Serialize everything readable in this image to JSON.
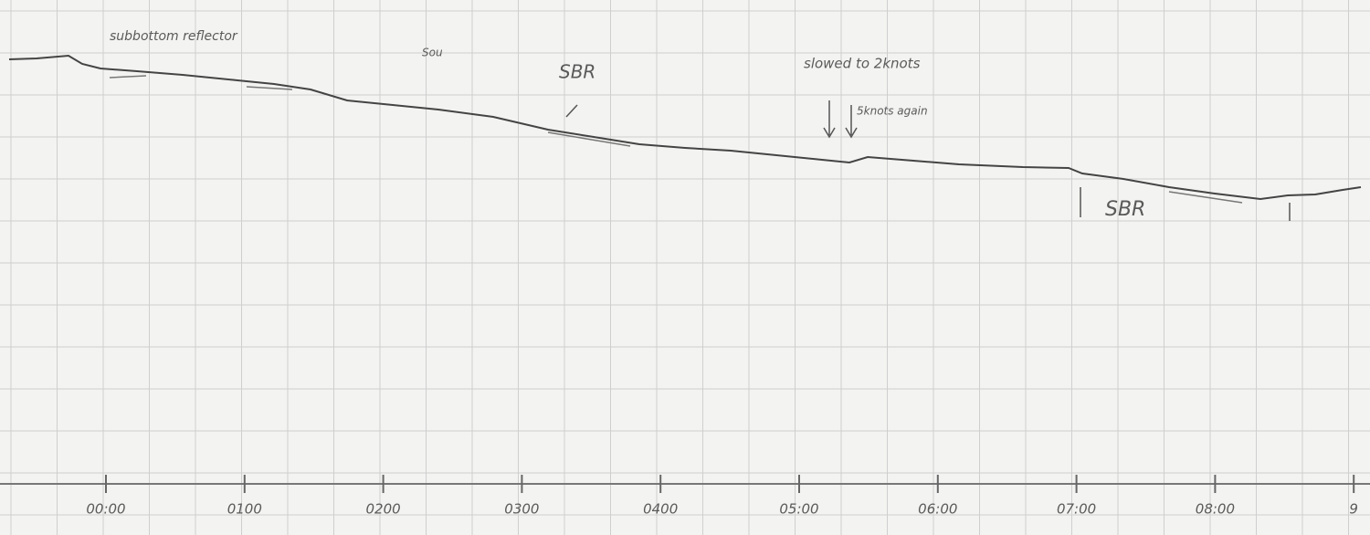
{
  "time_labels": [
    "00:00",
    "0100",
    "0200",
    "0300",
    "0400",
    "05:00",
    "06:00",
    "07:00",
    "08:00",
    "9"
  ],
  "annotations": {
    "reflector": "subbottom reflector",
    "sou": "Sou",
    "sbr_1": "SBR",
    "slowed": "slowed to 2knots",
    "again": "5knots again",
    "sbr_2": "SBR"
  }
}
